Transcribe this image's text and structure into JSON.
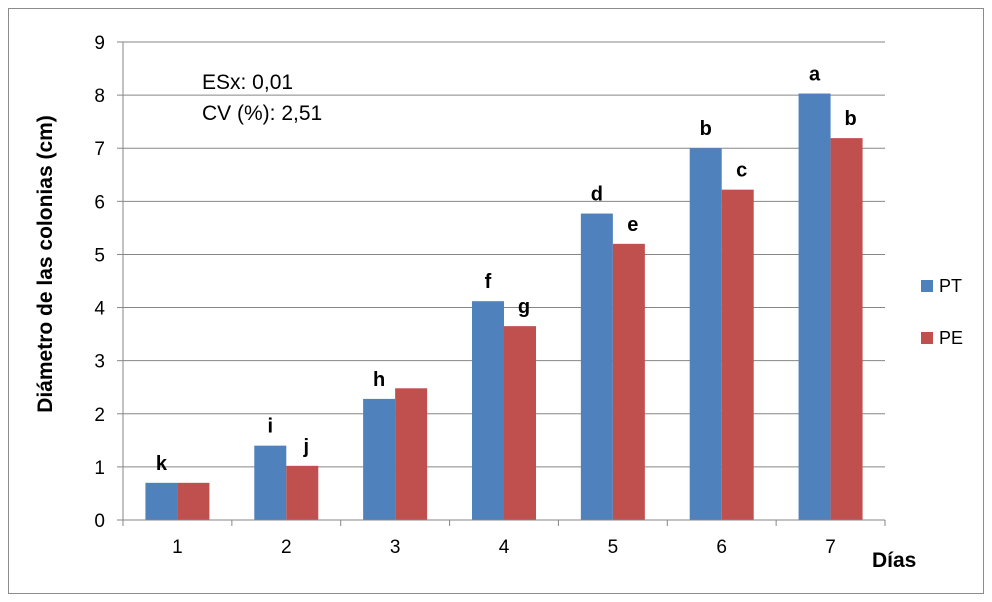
{
  "chart_data": {
    "type": "bar",
    "categories": [
      "1",
      "2",
      "3",
      "4",
      "5",
      "6",
      "7"
    ],
    "series": [
      {
        "name": "PT",
        "color": "#4F81BD",
        "values": [
          0.7,
          1.4,
          2.28,
          4.12,
          5.77,
          7.0,
          8.03
        ],
        "labels": [
          "k",
          "i",
          "h",
          "f",
          "d",
          "b",
          "a"
        ]
      },
      {
        "name": "PE",
        "color": "#C0504D",
        "values": [
          0.7,
          1.02,
          2.48,
          3.65,
          5.2,
          6.22,
          7.19
        ],
        "labels": [
          "",
          "j",
          "",
          "g",
          "e",
          "c",
          "b"
        ]
      }
    ],
    "xlabel": "Días",
    "ylabel": "Diámetro de las colonias (cm)",
    "ylim": [
      0,
      9
    ],
    "yticks": [
      "0",
      "1",
      "2",
      "3",
      "4",
      "5",
      "6",
      "7",
      "8",
      "9"
    ],
    "grid": true,
    "legend_position": "right",
    "annotations": [
      "ESx: 0,01",
      "CV (%): 2,51"
    ]
  }
}
